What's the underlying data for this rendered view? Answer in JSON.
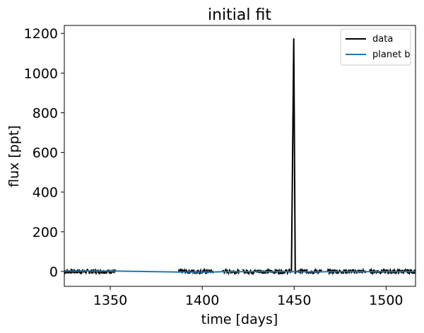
{
  "chart_data": {
    "type": "line",
    "title": "initial fit",
    "xlabel": "time [days]",
    "ylabel": "flux [ppt]",
    "xlim": [
      1325,
      1516
    ],
    "ylim": [
      -75,
      1240
    ],
    "xticks": [
      1350,
      1400,
      1450,
      1500
    ],
    "yticks": [
      0,
      200,
      400,
      600,
      800,
      1000,
      1200
    ],
    "legend": {
      "position": "top-right",
      "entries": [
        "data",
        "planet b"
      ]
    },
    "series": [
      {
        "name": "data",
        "color": "#000000",
        "segments": [
          [
            1325,
            1353
          ],
          [
            1387,
            1406
          ],
          [
            1411,
            1420
          ],
          [
            1422,
            1448
          ],
          [
            1452,
            1465
          ],
          [
            1468,
            1489
          ],
          [
            1491,
            1517
          ]
        ],
        "noise": 12,
        "spike": {
          "x": [
            1448.5,
            1449.8,
            1450.6,
            1451.2
          ],
          "y": [
            -5,
            1175,
            -12,
            5
          ]
        }
      },
      {
        "name": "planet b",
        "color": "#1f77b4",
        "x": [
          1325,
          1353,
          1387,
          1406,
          1411,
          1420,
          1422,
          1448,
          1452,
          1465,
          1468,
          1489,
          1491,
          1516
        ],
        "y": [
          2,
          2,
          -3,
          -3,
          -1,
          -1,
          -1,
          -1,
          -2,
          -2,
          -1,
          -1,
          -1,
          -1
        ]
      }
    ]
  }
}
